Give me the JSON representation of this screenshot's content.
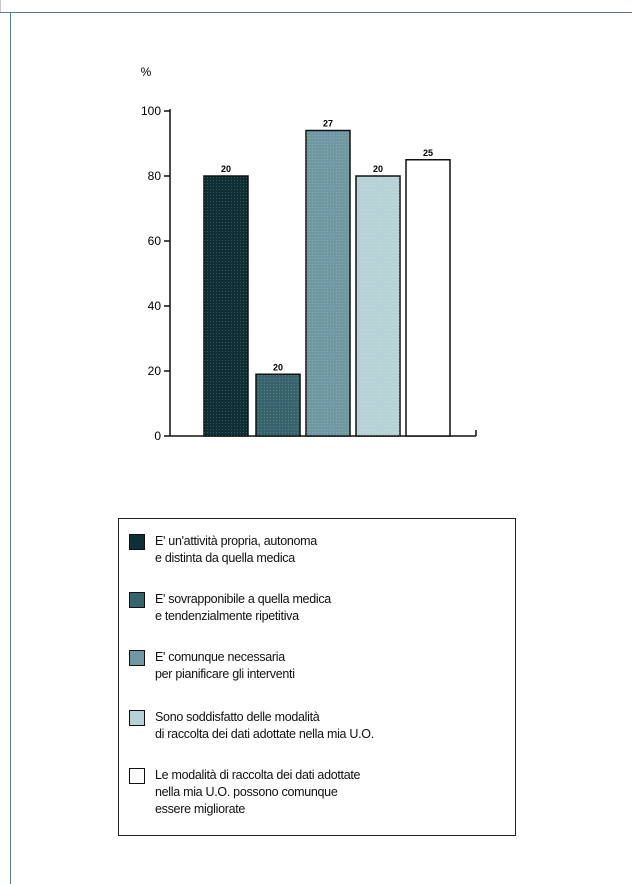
{
  "chart_data": {
    "type": "bar",
    "ylabel": "%",
    "ylim": [
      0,
      100
    ],
    "yticks": [
      0,
      20,
      40,
      60,
      80,
      100
    ],
    "values": [
      80,
      19,
      94,
      80,
      85
    ],
    "data_labels": [
      "20",
      "20",
      "27",
      "20",
      "25"
    ],
    "colors": [
      "#0d2f35",
      "#37636c",
      "#6f98a2",
      "#b6d2d6",
      "#ffffff"
    ],
    "legend": [
      {
        "lines": [
          "E' un'attività propria, autonoma",
          "e distinta da quella medica"
        ]
      },
      {
        "lines": [
          "E' sovrapponibile a quella medica",
          "e tendenzialmente ripetitiva"
        ]
      },
      {
        "lines": [
          "E' comunque necessaria",
          "per pianificare gli interventi"
        ]
      },
      {
        "lines": [
          "Sono soddisfatto delle modalità",
          "di raccolta dei dati adottate nella mia U.O."
        ]
      },
      {
        "lines": [
          "Le modalità di raccolta dei dati adottate",
          "nella mia U.O. possono comunque",
          "essere migliorate"
        ]
      }
    ]
  }
}
